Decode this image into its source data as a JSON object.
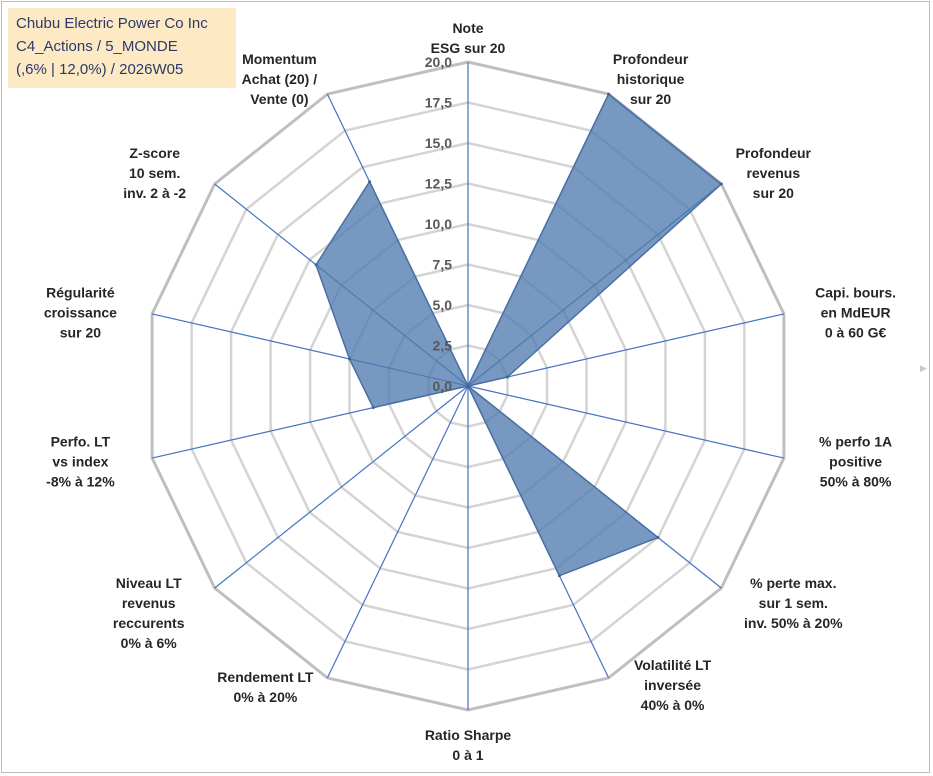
{
  "chart_data": {
    "type": "radar",
    "title_lines": [
      "Chubu Electric Power Co Inc",
      "C4_Actions / 5_MONDE",
      "(,6% | 12,0%) / 2026W05"
    ],
    "r_range": [
      0,
      20
    ],
    "r_ticks": [
      "0,0",
      "2,5",
      "5,0",
      "7,5",
      "10,0",
      "12,5",
      "15,0",
      "17,5",
      "20,0"
    ],
    "grid": true,
    "series_color": "#4f7bb0",
    "axes": [
      {
        "label": [
          "Note",
          "ESG sur 20"
        ],
        "value": 0
      },
      {
        "label": [
          "Profondeur",
          "historique",
          "sur 20"
        ],
        "value": 20
      },
      {
        "label": [
          "Profondeur",
          "revenus",
          "sur 20"
        ],
        "value": 20
      },
      {
        "label": [
          "Capi. bours.",
          "en MdEUR",
          "0 à 60 G€"
        ],
        "value": 2.5
      },
      {
        "label": [
          "% perfo 1A",
          "positive",
          "50% à 80%"
        ],
        "value": 0
      },
      {
        "label": [
          "% perte max.",
          "sur 1 sem.",
          "inv. 50% à 20%"
        ],
        "value": 15
      },
      {
        "label": [
          "Volatilité LT",
          "inversée",
          "40% à 0%"
        ],
        "value": 13
      },
      {
        "label": [
          "Ratio Sharpe",
          "0 à 1"
        ],
        "value": 0
      },
      {
        "label": [
          "Rendement LT",
          "0% à 20%"
        ],
        "value": 0
      },
      {
        "label": [
          "Niveau LT",
          "revenus",
          "reccurents",
          "0% à 6%"
        ],
        "value": 0
      },
      {
        "label": [
          "Perfo. LT",
          "vs index",
          "-8% à 12%"
        ],
        "value": 6
      },
      {
        "label": [
          "Régularité",
          "croissance",
          "sur 20"
        ],
        "value": 7.5
      },
      {
        "label": [
          "Z-score",
          "10 sem.",
          "inv. 2 à -2"
        ],
        "value": 12
      },
      {
        "label": [
          "Momentum",
          "Achat (20) /",
          "Vente (0)"
        ],
        "value": 14
      }
    ]
  }
}
